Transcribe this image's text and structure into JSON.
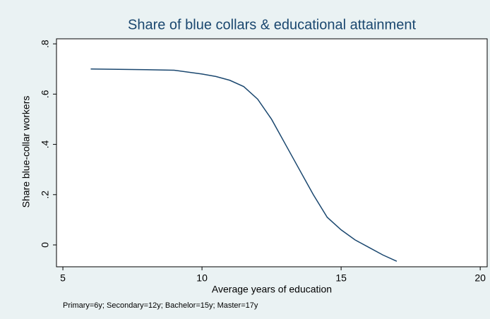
{
  "chart_data": {
    "type": "line",
    "title": "Share of blue collars & educational attainment",
    "xlabel": "Average years of education",
    "ylabel": "Share blue-collar workers",
    "note": "Primary=6y; Secondary=12y; Bachelor=15y; Master=17y",
    "x": [
      6,
      8,
      9,
      10,
      10.5,
      11,
      11.5,
      12,
      12.5,
      13,
      13.5,
      14,
      14.5,
      15,
      15.5,
      16,
      16.5,
      17
    ],
    "series": [
      {
        "color": "#1a476f",
        "values": [
          0.7,
          0.697,
          0.695,
          0.68,
          0.67,
          0.655,
          0.63,
          0.58,
          0.5,
          0.4,
          0.3,
          0.2,
          0.11,
          0.06,
          0.02,
          -0.01,
          -0.04,
          -0.065
        ]
      }
    ],
    "xlim": [
      4.77,
      20.25
    ],
    "xticks": [
      5,
      10,
      15,
      20
    ],
    "ylim": [
      -0.087,
      0.82
    ],
    "yticks": [
      0,
      {
        "value": 0.2,
        "label": ".2"
      },
      {
        "value": 0.4,
        "label": ".4"
      },
      {
        "value": 0.6,
        "label": ".6"
      },
      {
        "value": 0.8,
        "label": ".8"
      }
    ],
    "grid": false
  }
}
